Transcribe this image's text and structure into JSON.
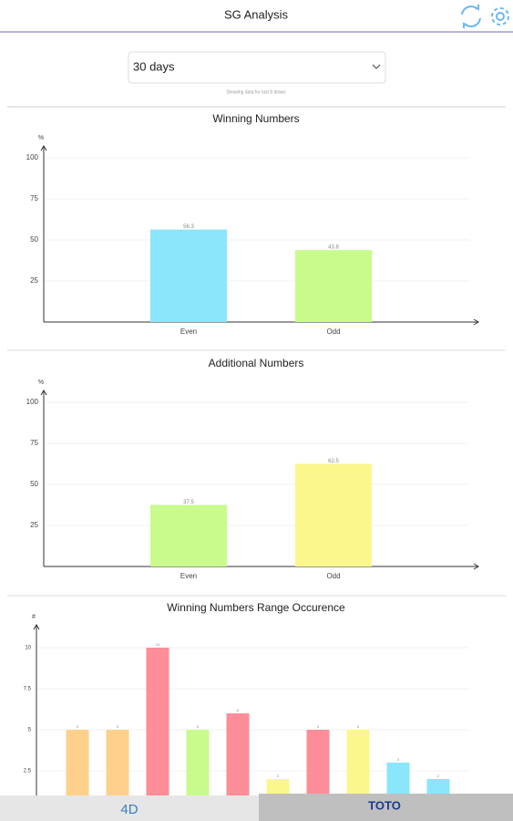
{
  "header": {
    "title": "SG Analysis"
  },
  "dropdown": {
    "value": "30 days",
    "note": "Showing data for last 8 draws"
  },
  "chart_data": [
    {
      "type": "bar",
      "title": "Winning Numbers",
      "y_label": "%",
      "categories": [
        "Even",
        "Odd"
      ],
      "values": [
        56.3,
        43.8
      ],
      "colors": [
        "#8ae6fb",
        "#c8fb8c"
      ],
      "ylim": [
        0,
        100
      ],
      "yticks": [
        25,
        50,
        75,
        100
      ],
      "grid": true
    },
    {
      "type": "bar",
      "title": "Additional Numbers",
      "y_label": "%",
      "categories": [
        "Even",
        "Odd"
      ],
      "values": [
        37.5,
        62.5
      ],
      "colors": [
        "#c8fb8c",
        "#fbf78c"
      ],
      "ylim": [
        0,
        100
      ],
      "yticks": [
        25,
        50,
        75,
        100
      ],
      "grid": true
    },
    {
      "type": "bar",
      "title": "Winning Numbers Range Occurence",
      "y_label": "#",
      "categories": [
        null,
        null,
        null,
        null,
        null,
        null,
        null,
        null,
        null,
        null
      ],
      "values": [
        5,
        5,
        10,
        5,
        6,
        2,
        5,
        5,
        3,
        2
      ],
      "colors": [
        "#fdd08c",
        "#fdd08c",
        "#fc8d99",
        "#c8fb8c",
        "#fc8d99",
        "#fbf78c",
        "#fc8d99",
        "#fbf78c",
        "#8ae6fb",
        "#8ae6fb"
      ],
      "ylim": [
        0,
        10
      ],
      "yticks": [
        2.5,
        5,
        7.5,
        10
      ],
      "grid": true
    }
  ],
  "tabs": [
    "4D",
    "TOTO"
  ]
}
